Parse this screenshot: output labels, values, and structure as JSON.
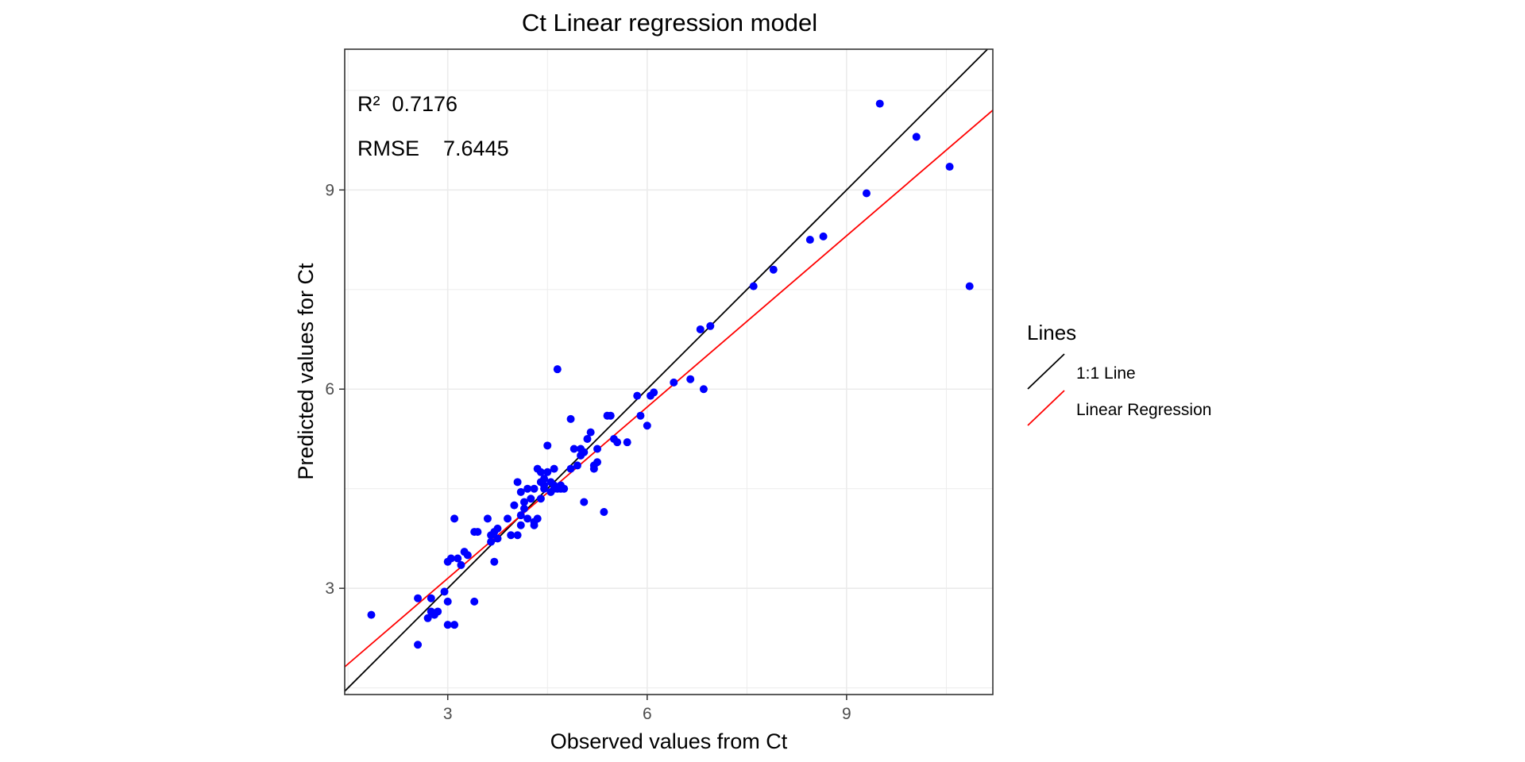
{
  "chart_data": {
    "type": "scatter",
    "title": "Ct  Linear regression model",
    "xlabel": "Observed values from Ct",
    "ylabel": "Predicted values for Ct",
    "xlim": [
      1.45,
      11.2
    ],
    "ylim": [
      1.4,
      11.12
    ],
    "xticks": [
      3,
      6,
      9
    ],
    "yticks": [
      3,
      6,
      9
    ],
    "xtick_labels": [
      "3",
      "6",
      "9"
    ],
    "ytick_labels": [
      "3",
      "6",
      "9"
    ],
    "grid": true,
    "annotations": {
      "r2_label": "R²  0.7176",
      "rmse_label": "RMSE    7.6445"
    },
    "legend": {
      "title": "Lines",
      "placement": "right",
      "entries": [
        {
          "label": "1:1 Line",
          "color": "#000000"
        },
        {
          "label": "Linear Regression",
          "color": "#ff0000"
        }
      ]
    },
    "lines": {
      "identity": {
        "slope": 1,
        "intercept": 0,
        "color": "#000000"
      },
      "regression": {
        "slope": 0.86,
        "intercept": 0.57,
        "color": "#ff0000"
      }
    },
    "point_color": "#0000ff",
    "points": {
      "x": [
        1.85,
        2.55,
        2.55,
        2.7,
        2.75,
        2.75,
        2.8,
        2.85,
        2.95,
        3.0,
        3.0,
        3.0,
        3.05,
        3.1,
        3.1,
        3.15,
        3.2,
        3.25,
        3.3,
        3.4,
        3.4,
        3.45,
        3.6,
        3.65,
        3.65,
        3.7,
        3.7,
        3.75,
        3.75,
        3.9,
        3.95,
        4.0,
        4.05,
        4.05,
        4.1,
        4.1,
        4.1,
        4.15,
        4.15,
        4.2,
        4.2,
        4.25,
        4.3,
        4.3,
        4.3,
        4.35,
        4.35,
        4.4,
        4.4,
        4.4,
        4.45,
        4.45,
        4.45,
        4.5,
        4.5,
        4.55,
        4.55,
        4.6,
        4.6,
        4.6,
        4.65,
        4.65,
        4.7,
        4.7,
        4.75,
        4.85,
        4.85,
        4.9,
        4.95,
        5.0,
        5.0,
        5.05,
        5.05,
        5.1,
        5.15,
        5.2,
        5.2,
        5.25,
        5.25,
        5.35,
        5.4,
        5.45,
        5.5,
        5.55,
        5.7,
        5.85,
        5.9,
        6.0,
        6.05,
        6.1,
        6.4,
        6.65,
        6.8,
        6.85,
        6.95,
        7.6,
        7.9,
        8.45,
        8.65,
        9.3,
        9.5,
        10.05,
        10.55,
        10.85
      ],
      "y": [
        2.6,
        2.15,
        2.85,
        2.55,
        2.65,
        2.85,
        2.6,
        2.65,
        2.95,
        2.45,
        2.8,
        3.4,
        3.45,
        4.05,
        2.45,
        3.45,
        3.35,
        3.55,
        3.5,
        2.8,
        3.85,
        3.85,
        4.05,
        3.7,
        3.8,
        3.4,
        3.85,
        3.75,
        3.9,
        4.05,
        3.8,
        4.25,
        3.8,
        4.6,
        3.95,
        4.1,
        4.45,
        4.2,
        4.3,
        4.05,
        4.5,
        4.35,
        3.95,
        4.0,
        4.5,
        4.05,
        4.8,
        4.35,
        4.6,
        4.75,
        4.5,
        4.55,
        4.65,
        4.75,
        5.15,
        4.45,
        4.6,
        4.5,
        4.55,
        4.8,
        6.3,
        4.5,
        4.55,
        4.5,
        4.5,
        4.8,
        5.55,
        5.1,
        4.85,
        5.0,
        5.1,
        5.05,
        4.3,
        5.25,
        5.35,
        4.8,
        4.85,
        4.9,
        5.1,
        4.15,
        5.6,
        5.6,
        5.25,
        5.2,
        5.2,
        5.9,
        5.6,
        5.45,
        5.9,
        5.95,
        6.1,
        6.15,
        6.9,
        6.0,
        6.95,
        7.55,
        7.8,
        8.25,
        8.3,
        8.95,
        10.3,
        9.8,
        9.35,
        7.55
      ]
    }
  }
}
